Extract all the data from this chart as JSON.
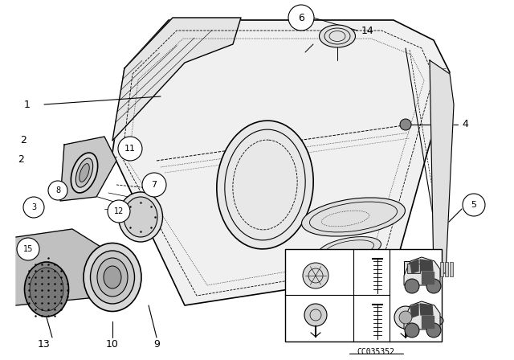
{
  "bg_color": "#ffffff",
  "figsize": [
    6.4,
    4.48
  ],
  "dpi": 100,
  "code_text": "CC035352",
  "line_color": "#000000",
  "text_color": "#000000"
}
